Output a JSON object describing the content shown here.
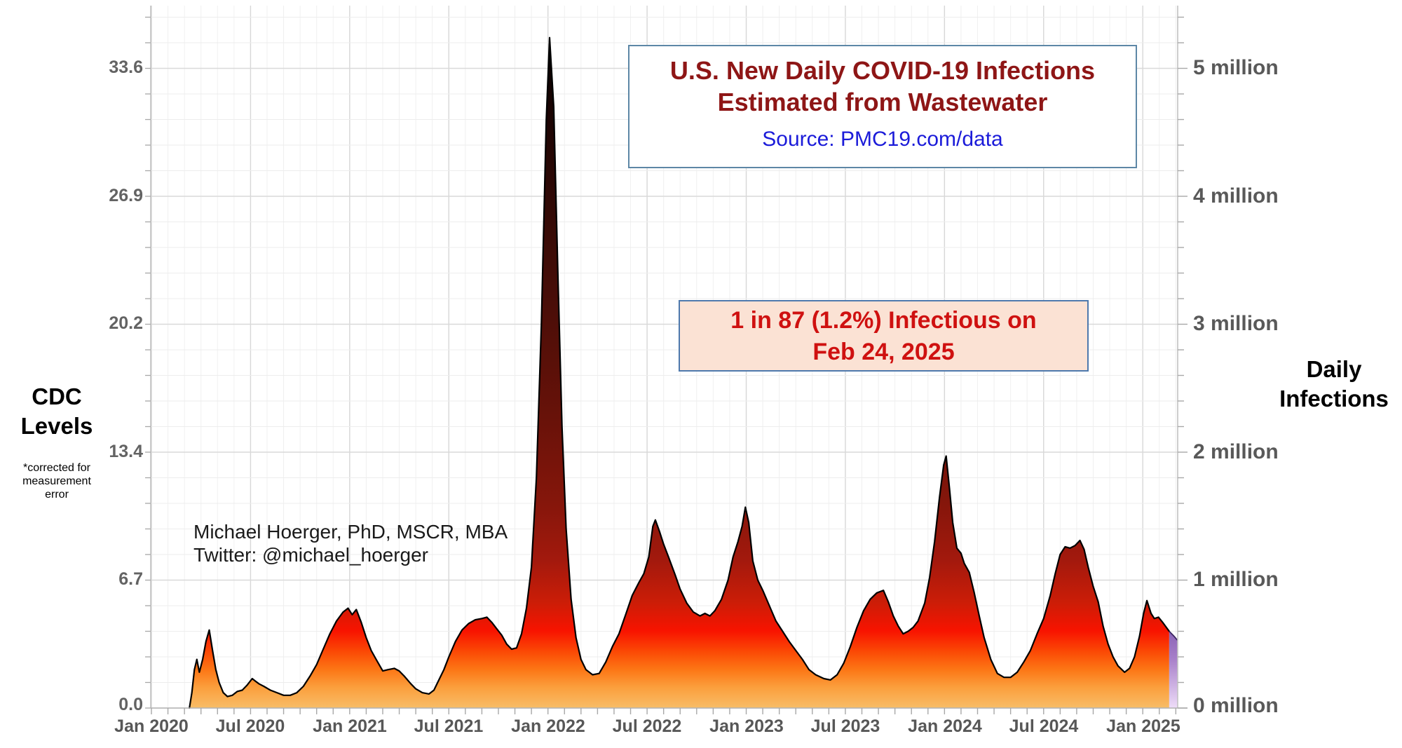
{
  "chart_data": {
    "type": "area",
    "title": "U.S. New Daily COVID-19 Infections Estimated from Wastewater",
    "title_line1": "U.S. New Daily COVID-19 Infections",
    "title_line2": "Estimated from Wastewater",
    "source_label": "Source: PMC19.com/data",
    "annotation_line1": "1 in 87 (1.2%) Infectious on",
    "annotation_line2": "Feb 24, 2025",
    "credit_line1": "Michael Hoerger, PhD, MSCR, MBA",
    "credit_line2": "Twitter: @michael_hoerger",
    "left_axis": {
      "label_line1": "CDC",
      "label_line2": "Levels",
      "footnote_line1": "*corrected for",
      "footnote_line2": "measurement",
      "footnote_line3": "error",
      "tick_labels": [
        "0.0",
        "6.7",
        "13.4",
        "20.2",
        "26.9",
        "33.6"
      ]
    },
    "right_axis": {
      "label_line1": "Daily",
      "label_line2": "Infections",
      "tick_labels": [
        "0 million",
        "1 million",
        "2 million",
        "3 million",
        "4 million",
        "5 million"
      ]
    },
    "x_axis": {
      "tick_labels": [
        "Jan 2020",
        "Jul 2020",
        "Jan 2021",
        "Jul 2021",
        "Jan 2022",
        "Jul 2022",
        "Jan 2023",
        "Jul 2023",
        "Jan 2024",
        "Jul 2024",
        "Jan 2025"
      ]
    },
    "ylim_millions": [
      0,
      5.5
    ],
    "ylim_cdc_levels": [
      0,
      37
    ],
    "grid": "minor monthly vertical + 0.2M horizontal, majors every 6 months / 1M",
    "series_name": "Estimated U.S. new daily COVID-19 infections (millions)",
    "points_month_value_millions": [
      [
        2.3,
        0.0
      ],
      [
        2.45,
        0.12
      ],
      [
        2.6,
        0.3
      ],
      [
        2.75,
        0.38
      ],
      [
        2.9,
        0.28
      ],
      [
        3.1,
        0.38
      ],
      [
        3.3,
        0.52
      ],
      [
        3.5,
        0.61
      ],
      [
        3.7,
        0.45
      ],
      [
        3.9,
        0.3
      ],
      [
        4.1,
        0.2
      ],
      [
        4.35,
        0.12
      ],
      [
        4.6,
        0.09
      ],
      [
        4.9,
        0.1
      ],
      [
        5.2,
        0.13
      ],
      [
        5.5,
        0.14
      ],
      [
        5.8,
        0.18
      ],
      [
        6.1,
        0.23
      ],
      [
        6.3,
        0.21
      ],
      [
        6.5,
        0.19
      ],
      [
        6.8,
        0.17
      ],
      [
        7.2,
        0.14
      ],
      [
        7.6,
        0.12
      ],
      [
        8.0,
        0.1
      ],
      [
        8.4,
        0.1
      ],
      [
        8.8,
        0.12
      ],
      [
        9.2,
        0.17
      ],
      [
        9.6,
        0.25
      ],
      [
        10.0,
        0.34
      ],
      [
        10.4,
        0.46
      ],
      [
        10.8,
        0.58
      ],
      [
        11.2,
        0.68
      ],
      [
        11.6,
        0.75
      ],
      [
        11.9,
        0.78
      ],
      [
        12.15,
        0.73
      ],
      [
        12.4,
        0.77
      ],
      [
        12.7,
        0.67
      ],
      [
        13.0,
        0.55
      ],
      [
        13.3,
        0.45
      ],
      [
        13.6,
        0.38
      ],
      [
        14.0,
        0.29
      ],
      [
        14.3,
        0.3
      ],
      [
        14.7,
        0.31
      ],
      [
        15.0,
        0.29
      ],
      [
        15.3,
        0.25
      ],
      [
        15.7,
        0.19
      ],
      [
        16.0,
        0.15
      ],
      [
        16.4,
        0.12
      ],
      [
        16.8,
        0.11
      ],
      [
        17.1,
        0.14
      ],
      [
        17.4,
        0.22
      ],
      [
        17.7,
        0.3
      ],
      [
        18.0,
        0.4
      ],
      [
        18.4,
        0.52
      ],
      [
        18.8,
        0.61
      ],
      [
        19.2,
        0.66
      ],
      [
        19.6,
        0.69
      ],
      [
        20.0,
        0.7
      ],
      [
        20.3,
        0.71
      ],
      [
        20.6,
        0.67
      ],
      [
        20.9,
        0.62
      ],
      [
        21.2,
        0.57
      ],
      [
        21.5,
        0.5
      ],
      [
        21.8,
        0.46
      ],
      [
        22.1,
        0.47
      ],
      [
        22.4,
        0.58
      ],
      [
        22.7,
        0.78
      ],
      [
        23.0,
        1.1
      ],
      [
        23.3,
        1.8
      ],
      [
        23.6,
        3.0
      ],
      [
        23.9,
        4.6
      ],
      [
        24.1,
        5.24
      ],
      [
        24.35,
        4.7
      ],
      [
        24.6,
        3.4
      ],
      [
        24.85,
        2.2
      ],
      [
        25.1,
        1.4
      ],
      [
        25.4,
        0.85
      ],
      [
        25.7,
        0.55
      ],
      [
        26.0,
        0.38
      ],
      [
        26.3,
        0.3
      ],
      [
        26.7,
        0.26
      ],
      [
        27.1,
        0.27
      ],
      [
        27.5,
        0.36
      ],
      [
        27.9,
        0.48
      ],
      [
        28.3,
        0.58
      ],
      [
        28.7,
        0.73
      ],
      [
        29.1,
        0.88
      ],
      [
        29.5,
        0.98
      ],
      [
        29.8,
        1.05
      ],
      [
        30.1,
        1.18
      ],
      [
        30.35,
        1.42
      ],
      [
        30.5,
        1.47
      ],
      [
        30.75,
        1.38
      ],
      [
        31.0,
        1.28
      ],
      [
        31.3,
        1.18
      ],
      [
        31.7,
        1.04
      ],
      [
        32.0,
        0.93
      ],
      [
        32.4,
        0.82
      ],
      [
        32.8,
        0.75
      ],
      [
        33.2,
        0.72
      ],
      [
        33.5,
        0.74
      ],
      [
        33.8,
        0.72
      ],
      [
        34.1,
        0.76
      ],
      [
        34.5,
        0.85
      ],
      [
        34.9,
        1.0
      ],
      [
        35.2,
        1.18
      ],
      [
        35.5,
        1.3
      ],
      [
        35.75,
        1.42
      ],
      [
        35.95,
        1.57
      ],
      [
        36.15,
        1.45
      ],
      [
        36.4,
        1.15
      ],
      [
        36.7,
        1.0
      ],
      [
        37.0,
        0.92
      ],
      [
        37.4,
        0.8
      ],
      [
        37.8,
        0.68
      ],
      [
        38.2,
        0.6
      ],
      [
        38.6,
        0.52
      ],
      [
        39.0,
        0.45
      ],
      [
        39.4,
        0.38
      ],
      [
        39.8,
        0.3
      ],
      [
        40.2,
        0.26
      ],
      [
        40.7,
        0.23
      ],
      [
        41.1,
        0.22
      ],
      [
        41.5,
        0.26
      ],
      [
        41.9,
        0.35
      ],
      [
        42.3,
        0.48
      ],
      [
        42.7,
        0.63
      ],
      [
        43.1,
        0.76
      ],
      [
        43.5,
        0.85
      ],
      [
        43.9,
        0.9
      ],
      [
        44.3,
        0.92
      ],
      [
        44.6,
        0.83
      ],
      [
        44.9,
        0.72
      ],
      [
        45.2,
        0.64
      ],
      [
        45.5,
        0.58
      ],
      [
        45.8,
        0.6
      ],
      [
        46.1,
        0.63
      ],
      [
        46.4,
        0.68
      ],
      [
        46.8,
        0.82
      ],
      [
        47.1,
        1.02
      ],
      [
        47.4,
        1.3
      ],
      [
        47.7,
        1.65
      ],
      [
        47.95,
        1.9
      ],
      [
        48.1,
        1.97
      ],
      [
        48.3,
        1.72
      ],
      [
        48.5,
        1.45
      ],
      [
        48.75,
        1.25
      ],
      [
        49.0,
        1.21
      ],
      [
        49.2,
        1.13
      ],
      [
        49.5,
        1.06
      ],
      [
        49.8,
        0.9
      ],
      [
        50.1,
        0.72
      ],
      [
        50.4,
        0.55
      ],
      [
        50.8,
        0.38
      ],
      [
        51.2,
        0.27
      ],
      [
        51.6,
        0.24
      ],
      [
        52.0,
        0.24
      ],
      [
        52.4,
        0.28
      ],
      [
        52.8,
        0.36
      ],
      [
        53.2,
        0.45
      ],
      [
        53.6,
        0.58
      ],
      [
        54.0,
        0.7
      ],
      [
        54.4,
        0.88
      ],
      [
        54.7,
        1.05
      ],
      [
        55.0,
        1.2
      ],
      [
        55.3,
        1.26
      ],
      [
        55.6,
        1.25
      ],
      [
        55.9,
        1.27
      ],
      [
        56.2,
        1.31
      ],
      [
        56.45,
        1.24
      ],
      [
        56.7,
        1.1
      ],
      [
        57.0,
        0.95
      ],
      [
        57.3,
        0.83
      ],
      [
        57.6,
        0.64
      ],
      [
        57.9,
        0.5
      ],
      [
        58.2,
        0.4
      ],
      [
        58.5,
        0.33
      ],
      [
        58.9,
        0.28
      ],
      [
        59.2,
        0.31
      ],
      [
        59.5,
        0.4
      ],
      [
        59.8,
        0.56
      ],
      [
        60.05,
        0.74
      ],
      [
        60.25,
        0.84
      ],
      [
        60.5,
        0.74
      ],
      [
        60.7,
        0.7
      ],
      [
        60.95,
        0.71
      ],
      [
        61.2,
        0.67
      ],
      [
        61.6,
        0.6
      ],
      [
        61.9,
        0.56
      ],
      [
        62.1,
        0.53
      ]
    ],
    "provisional_start_month": 61.6,
    "provisional_note": "final segment shaded purple (provisional data)",
    "colors": {
      "title_text": "#8e1616",
      "source_text": "#1b1bd9",
      "annotation_text": "#cf1110",
      "annotation_bg": "#fbe2d4",
      "box_border": "#5d87a6",
      "axis_text": "#595959",
      "curve_outline": "#000000",
      "area_gradient_top_to_bottom": [
        "#000000",
        "#190403",
        "#330a06",
        "#4d0e08",
        "#691209",
        "#86160b",
        "#a3190d",
        "#cc1d07",
        "#f81300",
        "#fb4a05",
        "#fc7615",
        "#fb9e3c",
        "#f8bd67"
      ],
      "provisional_gradient": [
        "#7b55ab",
        "#a77fc9",
        "#eedcf8"
      ]
    }
  }
}
